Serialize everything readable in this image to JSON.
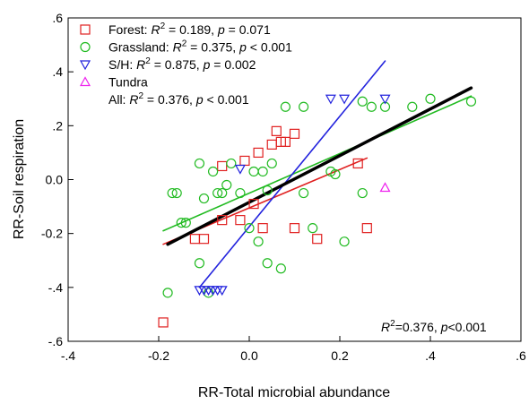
{
  "chart_data": {
    "type": "scatter",
    "xlabel": "RR-Total microbial abundance",
    "ylabel": "RR-Soil respiration",
    "xlim": [
      -0.4,
      0.6
    ],
    "ylim": [
      -0.6,
      0.6
    ],
    "x_ticks": [
      -0.4,
      -0.2,
      0.0,
      0.2,
      0.4,
      0.6
    ],
    "x_tick_labels": [
      "-.4",
      "-0.2",
      "0.0",
      "0.2",
      ".4",
      ".6"
    ],
    "y_ticks": [
      -0.6,
      -0.4,
      -0.2,
      0.0,
      0.2,
      0.4,
      0.6
    ],
    "y_tick_labels": [
      "-.6",
      "-.4",
      "-0.2",
      "0.0",
      ".2",
      ".4",
      ".6"
    ],
    "grid": false,
    "legend_position": "top-left",
    "annotation": {
      "r2_label": "=0.376, ",
      "p_label": "p",
      "p_value": "<0.001"
    },
    "series": [
      {
        "name": "Forest",
        "stats": {
          "r2": "0.189",
          "p_op": "=",
          "p": "0.071"
        },
        "marker": "square",
        "color": "#e02020",
        "x": [
          -0.19,
          -0.12,
          -0.1,
          -0.06,
          -0.06,
          -0.02,
          -0.01,
          0.01,
          0.02,
          0.03,
          0.05,
          0.06,
          0.07,
          0.08,
          0.1,
          0.1,
          0.15,
          0.24,
          0.26
        ],
        "y": [
          -0.53,
          -0.22,
          -0.22,
          -0.15,
          0.05,
          -0.15,
          0.07,
          -0.09,
          0.1,
          -0.18,
          0.13,
          0.18,
          0.14,
          0.14,
          0.17,
          -0.18,
          -0.22,
          0.06,
          -0.18
        ],
        "fit": {
          "x": [
            -0.19,
            0.26
          ],
          "y": [
            -0.24,
            0.08
          ]
        }
      },
      {
        "name": "Grassland",
        "stats": {
          "r2": "0.375",
          "p_op": "<",
          "p": "0.001"
        },
        "marker": "circle",
        "color": "#22bb22",
        "x": [
          -0.18,
          -0.17,
          -0.16,
          -0.15,
          -0.14,
          -0.11,
          -0.11,
          -0.1,
          -0.09,
          -0.08,
          -0.07,
          -0.06,
          -0.05,
          -0.04,
          -0.02,
          0.0,
          0.01,
          0.02,
          0.03,
          0.04,
          0.04,
          0.05,
          0.07,
          0.08,
          0.12,
          0.12,
          0.14,
          0.18,
          0.19,
          0.21,
          0.25,
          0.25,
          0.27,
          0.3,
          0.36,
          0.4,
          0.49
        ],
        "y": [
          -0.42,
          -0.05,
          -0.05,
          -0.16,
          -0.16,
          0.06,
          -0.31,
          -0.07,
          -0.42,
          0.03,
          -0.05,
          -0.05,
          -0.02,
          0.06,
          -0.05,
          -0.18,
          0.03,
          -0.23,
          0.03,
          -0.04,
          -0.31,
          0.06,
          -0.33,
          0.27,
          0.27,
          -0.05,
          -0.18,
          0.03,
          0.02,
          -0.23,
          -0.05,
          0.29,
          0.27,
          0.27,
          0.27,
          0.3,
          0.29
        ],
        "fit": {
          "x": [
            -0.19,
            0.49
          ],
          "y": [
            -0.19,
            0.31
          ]
        }
      },
      {
        "name": "S/H",
        "stats": {
          "r2": "0.875",
          "p_op": "=",
          "p": "0.002"
        },
        "marker": "triangle-down",
        "color": "#2222dd",
        "x": [
          -0.11,
          -0.1,
          -0.09,
          -0.08,
          -0.07,
          -0.06,
          -0.02,
          0.18,
          0.21,
          0.3
        ],
        "y": [
          -0.41,
          -0.41,
          -0.41,
          -0.41,
          -0.41,
          -0.41,
          0.04,
          0.3,
          0.3,
          0.3
        ],
        "fit": {
          "x": [
            -0.11,
            0.3
          ],
          "y": [
            -0.4,
            0.44
          ]
        }
      },
      {
        "name": "Tundra",
        "marker": "triangle-up",
        "color": "#ee22ee",
        "x": [
          0.3
        ],
        "y": [
          -0.03
        ]
      },
      {
        "name": "All",
        "stats": {
          "r2": "0.376",
          "p_op": "<",
          "p": "0.001"
        },
        "marker": "none",
        "color": "#000000",
        "fit": {
          "x": [
            -0.18,
            0.49
          ],
          "y": [
            -0.24,
            0.34
          ]
        }
      }
    ]
  }
}
